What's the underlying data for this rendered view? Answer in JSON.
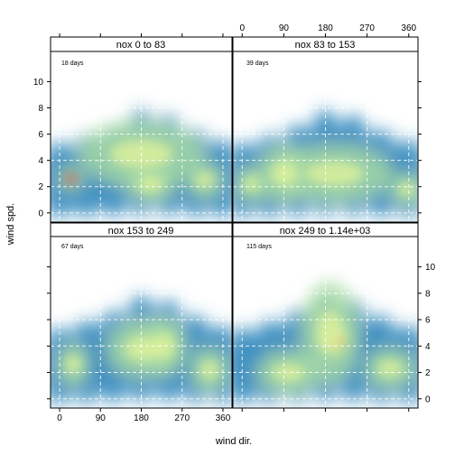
{
  "chart_data": {
    "type": "heatmap",
    "layout": "2x2 lattice",
    "xlabel": "wind dir.",
    "ylabel": "wind spd.",
    "xlim": [
      -20,
      380
    ],
    "ylim": [
      -0.7,
      12.3
    ],
    "x_ticks": [
      0,
      90,
      180,
      270,
      360
    ],
    "y_ticks": [
      0,
      2,
      4,
      6,
      8,
      10
    ],
    "grid": true,
    "colorscale": [
      "#5e4fa2",
      "#3288bd",
      "#66c2a5",
      "#abdda4",
      "#e6f598",
      "#fee08b",
      "#fdae61",
      "#f46d43",
      "#d53e4f",
      "#9e0142"
    ],
    "panels": [
      {
        "strip": "nox 0 to 83",
        "days": "18 days",
        "hotspots": [
          {
            "dir": 25,
            "spd": 2.6,
            "intensity": 1.0,
            "spread_dir": 18,
            "spread_spd": 0.7
          },
          {
            "dir": 200,
            "spd": 2.2,
            "intensity": 0.5,
            "spread_dir": 40,
            "spread_spd": 1.0
          },
          {
            "dir": 320,
            "spd": 2.5,
            "intensity": 0.45,
            "spread_dir": 30,
            "spread_spd": 1.0
          },
          {
            "dir": 180,
            "spd": 4.5,
            "intensity": 0.35,
            "spread_dir": 100,
            "spread_spd": 1.8
          }
        ]
      },
      {
        "strip": "nox 83 to 153",
        "days": "39 days",
        "hotspots": [
          {
            "dir": 90,
            "spd": 3.0,
            "intensity": 0.5,
            "spread_dir": 40,
            "spread_spd": 1.6
          },
          {
            "dir": 20,
            "spd": 2.2,
            "intensity": 0.45,
            "spread_dir": 25,
            "spread_spd": 1.0
          },
          {
            "dir": 355,
            "spd": 1.8,
            "intensity": 0.45,
            "spread_dir": 25,
            "spread_spd": 0.9
          },
          {
            "dir": 200,
            "spd": 3.0,
            "intensity": 0.35,
            "spread_dir": 90,
            "spread_spd": 1.6
          }
        ]
      },
      {
        "strip": "nox 153 to 249",
        "days": "67 days",
        "hotspots": [
          {
            "dir": 180,
            "spd": 3.8,
            "intensity": 0.55,
            "spread_dir": 55,
            "spread_spd": 1.6
          },
          {
            "dir": 230,
            "spd": 4.0,
            "intensity": 0.5,
            "spread_dir": 35,
            "spread_spd": 1.6
          },
          {
            "dir": 30,
            "spd": 2.6,
            "intensity": 0.45,
            "spread_dir": 25,
            "spread_spd": 1.2
          },
          {
            "dir": 330,
            "spd": 2.2,
            "intensity": 0.5,
            "spread_dir": 30,
            "spread_spd": 1.2
          }
        ]
      },
      {
        "strip": "nox 249 to 1.14e+03",
        "days": "115 days",
        "hotspots": [
          {
            "dir": 210,
            "spd": 4.3,
            "intensity": 0.8,
            "spread_dir": 20,
            "spread_spd": 0.9
          },
          {
            "dir": 190,
            "spd": 5.0,
            "intensity": 0.5,
            "spread_dir": 45,
            "spread_spd": 2.8
          },
          {
            "dir": 320,
            "spd": 2.3,
            "intensity": 0.5,
            "spread_dir": 40,
            "spread_spd": 1.1
          },
          {
            "dir": 100,
            "spd": 2.0,
            "intensity": 0.45,
            "spread_dir": 50,
            "spread_spd": 1.2
          }
        ]
      }
    ]
  }
}
